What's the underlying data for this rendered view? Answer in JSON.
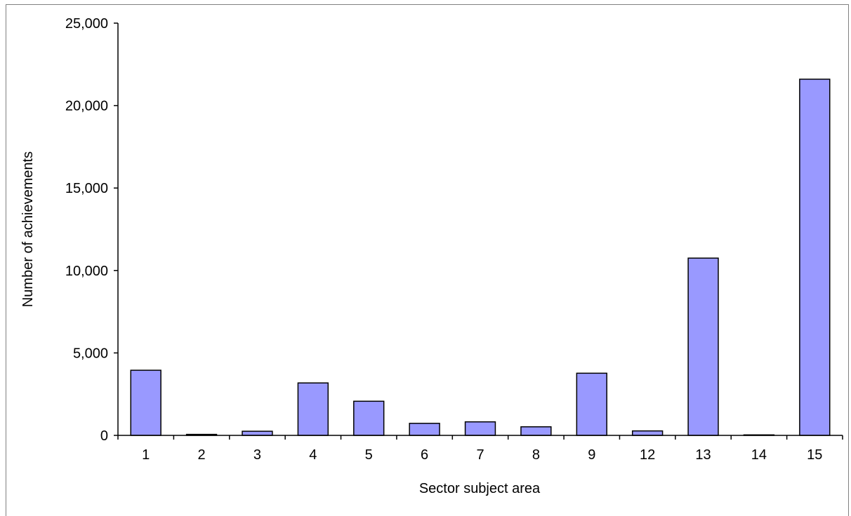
{
  "chart_data": {
    "type": "bar",
    "title": "",
    "xlabel": "Sector subject area",
    "ylabel": "Number of achievements",
    "categories": [
      "1",
      "2",
      "3",
      "4",
      "5",
      "6",
      "7",
      "8",
      "9",
      "12",
      "13",
      "14",
      "15"
    ],
    "values": [
      3950,
      60,
      250,
      3180,
      2070,
      730,
      820,
      520,
      3770,
      270,
      10750,
      30,
      21600
    ],
    "ylim": [
      0,
      25000
    ],
    "yticks": [
      0,
      5000,
      10000,
      15000,
      20000,
      25000
    ],
    "ytick_labels": [
      "0",
      "5,000",
      "10,000",
      "15,000",
      "20,000",
      "25,000"
    ],
    "grid": false,
    "legend": "none",
    "bar_color": "#9999ff",
    "bar_edge_color": "#000000"
  }
}
